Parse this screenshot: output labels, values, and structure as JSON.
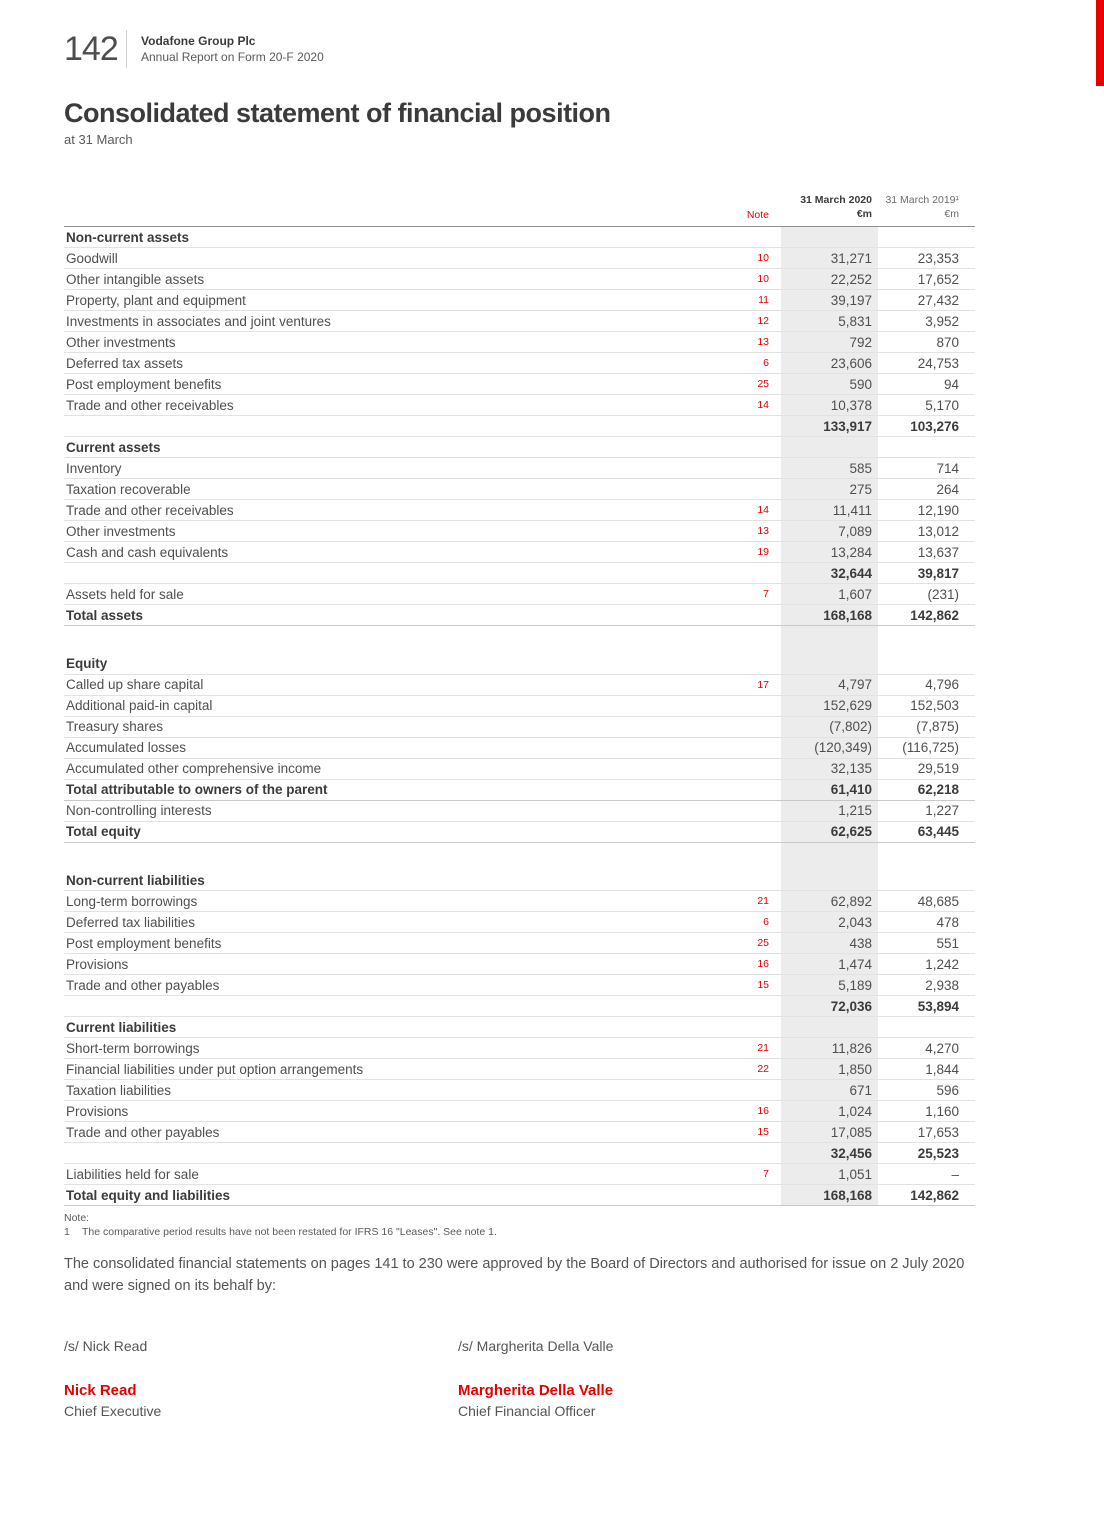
{
  "header": {
    "page_number": "142",
    "company": "Vodafone Group Plc",
    "report": "Annual Report on Form 20-F 2020"
  },
  "title": "Consolidated statement of financial position",
  "subtitle": "at 31 March",
  "colors": {
    "brand_red": "#e60000",
    "shaded_column": "#ececec"
  },
  "table": {
    "headers": {
      "note": "Note",
      "y2020_title": "31 March 2020",
      "y2020_unit": "€m",
      "y2019_title": "31 March 2019¹",
      "y2019_unit": "€m"
    },
    "rows": [
      {
        "type": "section",
        "label": "Non-current assets"
      },
      {
        "type": "item",
        "label": "Goodwill",
        "note": "10",
        "y2020": "31,271",
        "y2019": "23,353"
      },
      {
        "type": "item",
        "label": "Other intangible assets",
        "note": "10",
        "y2020": "22,252",
        "y2019": "17,652"
      },
      {
        "type": "item",
        "label": "Property, plant and equipment",
        "note": "11",
        "y2020": "39,197",
        "y2019": "27,432"
      },
      {
        "type": "item",
        "label": "Investments in associates and joint ventures",
        "note": "12",
        "y2020": "5,831",
        "y2019": "3,952"
      },
      {
        "type": "item",
        "label": "Other investments",
        "note": "13",
        "y2020": "792",
        "y2019": "870"
      },
      {
        "type": "item",
        "label": "Deferred tax assets",
        "note": "6",
        "y2020": "23,606",
        "y2019": "24,753"
      },
      {
        "type": "item",
        "label": "Post employment benefits",
        "note": "25",
        "y2020": "590",
        "y2019": "94"
      },
      {
        "type": "item",
        "label": "Trade and other receivables",
        "note": "14",
        "y2020": "10,378",
        "y2019": "5,170"
      },
      {
        "type": "subtotal",
        "label": "",
        "y2020": "133,917",
        "y2019": "103,276"
      },
      {
        "type": "section",
        "label": "Current assets"
      },
      {
        "type": "item",
        "label": "Inventory",
        "y2020": "585",
        "y2019": "714"
      },
      {
        "type": "item",
        "label": "Taxation recoverable",
        "y2020": "275",
        "y2019": "264"
      },
      {
        "type": "item",
        "label": "Trade and other receivables",
        "note": "14",
        "y2020": "11,411",
        "y2019": "12,190"
      },
      {
        "type": "item",
        "label": "Other investments",
        "note": "13",
        "y2020": "7,089",
        "y2019": "13,012"
      },
      {
        "type": "item",
        "label": "Cash and cash equivalents",
        "note": "19",
        "y2020": "13,284",
        "y2019": "13,637"
      },
      {
        "type": "subtotal",
        "label": "",
        "y2020": "32,644",
        "y2019": "39,817"
      },
      {
        "type": "item",
        "label": "Assets held for sale",
        "note": "7",
        "y2020": "1,607",
        "y2019": "(231)"
      },
      {
        "type": "total",
        "label": "Total assets",
        "y2020": "168,168",
        "y2019": "142,862"
      },
      {
        "type": "spacer"
      },
      {
        "type": "section",
        "label": "Equity"
      },
      {
        "type": "item",
        "label": "Called up share capital",
        "note": "17",
        "y2020": "4,797",
        "y2019": "4,796"
      },
      {
        "type": "item",
        "label": "Additional paid-in capital",
        "y2020": "152,629",
        "y2019": "152,503"
      },
      {
        "type": "item",
        "label": "Treasury shares",
        "y2020": "(7,802)",
        "y2019": "(7,875)"
      },
      {
        "type": "item",
        "label": "Accumulated losses",
        "y2020": "(120,349)",
        "y2019": "(116,725)"
      },
      {
        "type": "item",
        "label": "Accumulated other comprehensive income",
        "y2020": "32,135",
        "y2019": "29,519"
      },
      {
        "type": "total",
        "label": "Total attributable to owners of the parent",
        "y2020": "61,410",
        "y2019": "62,218"
      },
      {
        "type": "item",
        "label": "Non-controlling interests",
        "y2020": "1,215",
        "y2019": "1,227"
      },
      {
        "type": "total",
        "label": "Total equity",
        "y2020": "62,625",
        "y2019": "63,445"
      },
      {
        "type": "spacer"
      },
      {
        "type": "section",
        "label": "Non-current liabilities"
      },
      {
        "type": "item",
        "label": "Long-term borrowings",
        "note": "21",
        "y2020": "62,892",
        "y2019": "48,685"
      },
      {
        "type": "item",
        "label": "Deferred tax liabilities",
        "note": "6",
        "y2020": "2,043",
        "y2019": "478"
      },
      {
        "type": "item",
        "label": "Post employment benefits",
        "note": "25",
        "y2020": "438",
        "y2019": "551"
      },
      {
        "type": "item",
        "label": "Provisions",
        "note": "16",
        "y2020": "1,474",
        "y2019": "1,242"
      },
      {
        "type": "item",
        "label": "Trade and other payables",
        "note": "15",
        "y2020": "5,189",
        "y2019": "2,938"
      },
      {
        "type": "subtotal",
        "label": "",
        "y2020": "72,036",
        "y2019": "53,894"
      },
      {
        "type": "section",
        "label": "Current liabilities"
      },
      {
        "type": "item",
        "label": "Short-term borrowings",
        "note": "21",
        "y2020": "11,826",
        "y2019": "4,270"
      },
      {
        "type": "item",
        "label": "Financial liabilities under put option arrangements",
        "note": "22",
        "y2020": "1,850",
        "y2019": "1,844"
      },
      {
        "type": "item",
        "label": "Taxation liabilities",
        "y2020": "671",
        "y2019": "596"
      },
      {
        "type": "item",
        "label": "Provisions",
        "note": "16",
        "y2020": "1,024",
        "y2019": "1,160"
      },
      {
        "type": "item",
        "label": "Trade and other payables",
        "note": "15",
        "y2020": "17,085",
        "y2019": "17,653"
      },
      {
        "type": "subtotal",
        "label": "",
        "y2020": "32,456",
        "y2019": "25,523"
      },
      {
        "type": "item",
        "label": "Liabilities held for sale",
        "note": "7",
        "y2020": "1,051",
        "y2019": "–"
      },
      {
        "type": "total",
        "label": "Total equity and liabilities",
        "y2020": "168,168",
        "y2019": "142,862"
      }
    ]
  },
  "footnotes": {
    "label": "Note:",
    "items": [
      {
        "num": "1",
        "text": "The comparative period results have not been restated for IFRS 16 \"Leases\". See note 1."
      }
    ]
  },
  "approval_text": "The consolidated financial statements on pages 141 to 230 were approved by the Board of Directors and authorised for issue on 2 July 2020 and were signed on its behalf by:",
  "signatures": [
    {
      "signature": "/s/ Nick Read",
      "name": "Nick Read",
      "title": "Chief Executive"
    },
    {
      "signature": "/s/ Margherita Della Valle",
      "name": "Margherita Della Valle",
      "title": "Chief Financial Officer"
    }
  ]
}
